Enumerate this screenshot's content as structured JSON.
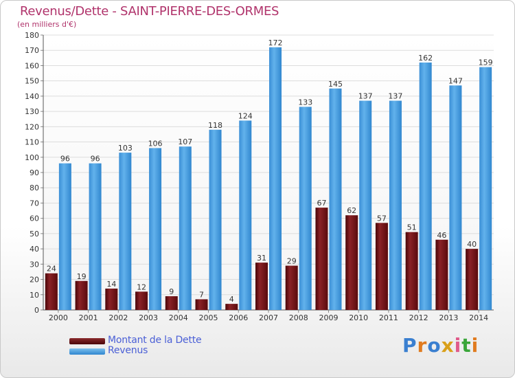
{
  "title": "Revenus/Dette - SAINT-PIERRE-DES-ORMES",
  "subtitle": "(en milliers d'€)",
  "logo": "Proxiti",
  "colors": {
    "dette": "#6e0f12",
    "revenus": "#4a9fdf",
    "title": "#b0336b",
    "legend_text": "#4a5fd6"
  },
  "legend": [
    {
      "label": "Montant de la Dette",
      "color": "#6e0f12"
    },
    {
      "label": "Revenus",
      "color": "#4a9fdf"
    }
  ],
  "chart_data": {
    "type": "bar",
    "categories": [
      "2000",
      "2001",
      "2002",
      "2003",
      "2004",
      "2005",
      "2006",
      "2007",
      "2008",
      "2009",
      "2010",
      "2011",
      "2012",
      "2013",
      "2014"
    ],
    "series": [
      {
        "name": "Montant de la Dette",
        "values": [
          24,
          19,
          14,
          12,
          9,
          7,
          4,
          31,
          29,
          67,
          62,
          57,
          51,
          46,
          40
        ]
      },
      {
        "name": "Revenus",
        "values": [
          96,
          96,
          103,
          106,
          107,
          118,
          124,
          172,
          133,
          145,
          137,
          137,
          162,
          147,
          159
        ]
      }
    ],
    "ylim": [
      0,
      180
    ],
    "yticks": [
      0,
      10,
      20,
      30,
      40,
      50,
      60,
      70,
      80,
      90,
      100,
      110,
      120,
      130,
      140,
      150,
      160,
      170,
      180
    ],
    "grid": true,
    "legend_position": "bottom-left"
  }
}
